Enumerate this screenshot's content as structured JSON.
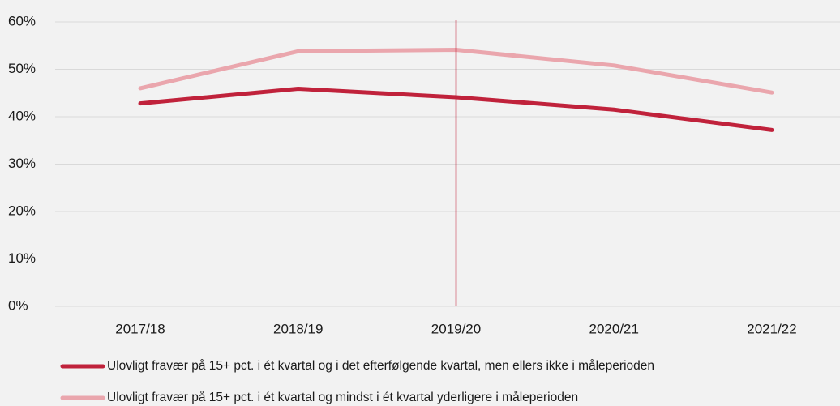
{
  "chart_data": {
    "type": "line",
    "categories": [
      "2017/18",
      "2018/19",
      "2019/20",
      "2020/21",
      "2021/22"
    ],
    "series": [
      {
        "name": "Ulovligt fravær på 15+ pct. i ét kvartal og i det efterfølgende kvartal, men ellers ikke i måleperioden",
        "color": "#c0223b",
        "values": [
          42.8,
          45.9,
          44.1,
          41.5,
          37.2
        ]
      },
      {
        "name": "Ulovligt fravær på 15+ pct. i ét kvartal og mindst i ét kvartal yderligere i måleperioden",
        "color": "#eaa6ad",
        "values": [
          46.0,
          53.8,
          54.1,
          50.8,
          45.1
        ]
      }
    ],
    "ylim": [
      0,
      60
    ],
    "yticks": [
      {
        "value": 0,
        "label": "0%"
      },
      {
        "value": 10,
        "label": "10%"
      },
      {
        "value": 20,
        "label": "20%"
      },
      {
        "value": 30,
        "label": "30%"
      },
      {
        "value": 40,
        "label": "40%"
      },
      {
        "value": 50,
        "label": "50%"
      },
      {
        "value": 60,
        "label": "60%"
      }
    ],
    "grid": true,
    "vline_category": "2019/20",
    "vline_color": "#c0223b",
    "legend": "bottom"
  }
}
